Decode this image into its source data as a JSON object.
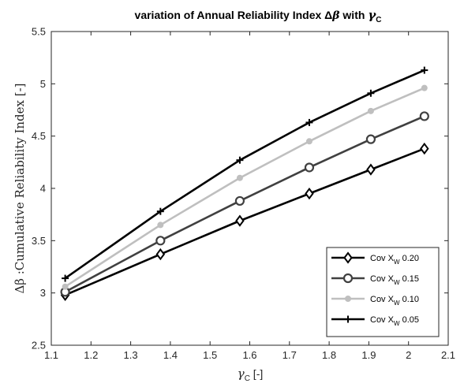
{
  "chart_data": {
    "type": "line",
    "title": "variation of Annual Reliability Index Δβ with γC",
    "title_text": "variation of Annual Reliability Index Δ",
    "title_beta": "β",
    "title_with": " with ",
    "title_gamma": "γ",
    "title_gamma_sub": "C",
    "xlabel": "γC [-]",
    "xlabel_gamma": "γ",
    "xlabel_sub": "C",
    "xlabel_unit": " [-]",
    "ylabel": "Δβ :Cumulative Reliability Index [-]",
    "xlim": [
      1.1,
      2.1
    ],
    "ylim": [
      2.5,
      5.5
    ],
    "xticks": [
      "1.1",
      "1.2",
      "1.3",
      "1.4",
      "1.5",
      "1.6",
      "1.7",
      "1.8",
      "1.9",
      "2",
      "2.1"
    ],
    "yticks": [
      "2.5",
      "3",
      "3.5",
      "4",
      "4.5",
      "5",
      "5.5"
    ],
    "x": [
      1.135,
      1.375,
      1.575,
      1.75,
      1.905,
      2.04
    ],
    "legend_position": "bottom-right",
    "grid": false,
    "series": [
      {
        "name": "Cov XW 0.20",
        "legend_main": "Cov X",
        "legend_sub": "W",
        "legend_value": " 0.20",
        "marker": "diamond",
        "color": "#000000",
        "values": [
          2.98,
          3.37,
          3.69,
          3.95,
          4.18,
          4.38
        ]
      },
      {
        "name": "Cov XW 0.15",
        "legend_main": "Cov X",
        "legend_sub": "W",
        "legend_value": " 0.15",
        "marker": "circle",
        "color": "#404040",
        "values": [
          3.01,
          3.5,
          3.88,
          4.2,
          4.47,
          4.69
        ]
      },
      {
        "name": "Cov XW 0.10",
        "legend_main": "Cov X",
        "legend_sub": "W",
        "legend_value": " 0.10",
        "marker": "dot",
        "color": "#bfbfbf",
        "values": [
          3.06,
          3.65,
          4.1,
          4.45,
          4.74,
          4.96
        ]
      },
      {
        "name": "Cov XW 0.05",
        "legend_main": "Cov X",
        "legend_sub": "W",
        "legend_value": " 0.05",
        "marker": "plus",
        "color": "#000000",
        "values": [
          3.14,
          3.78,
          4.27,
          4.63,
          4.91,
          5.13
        ]
      }
    ]
  }
}
